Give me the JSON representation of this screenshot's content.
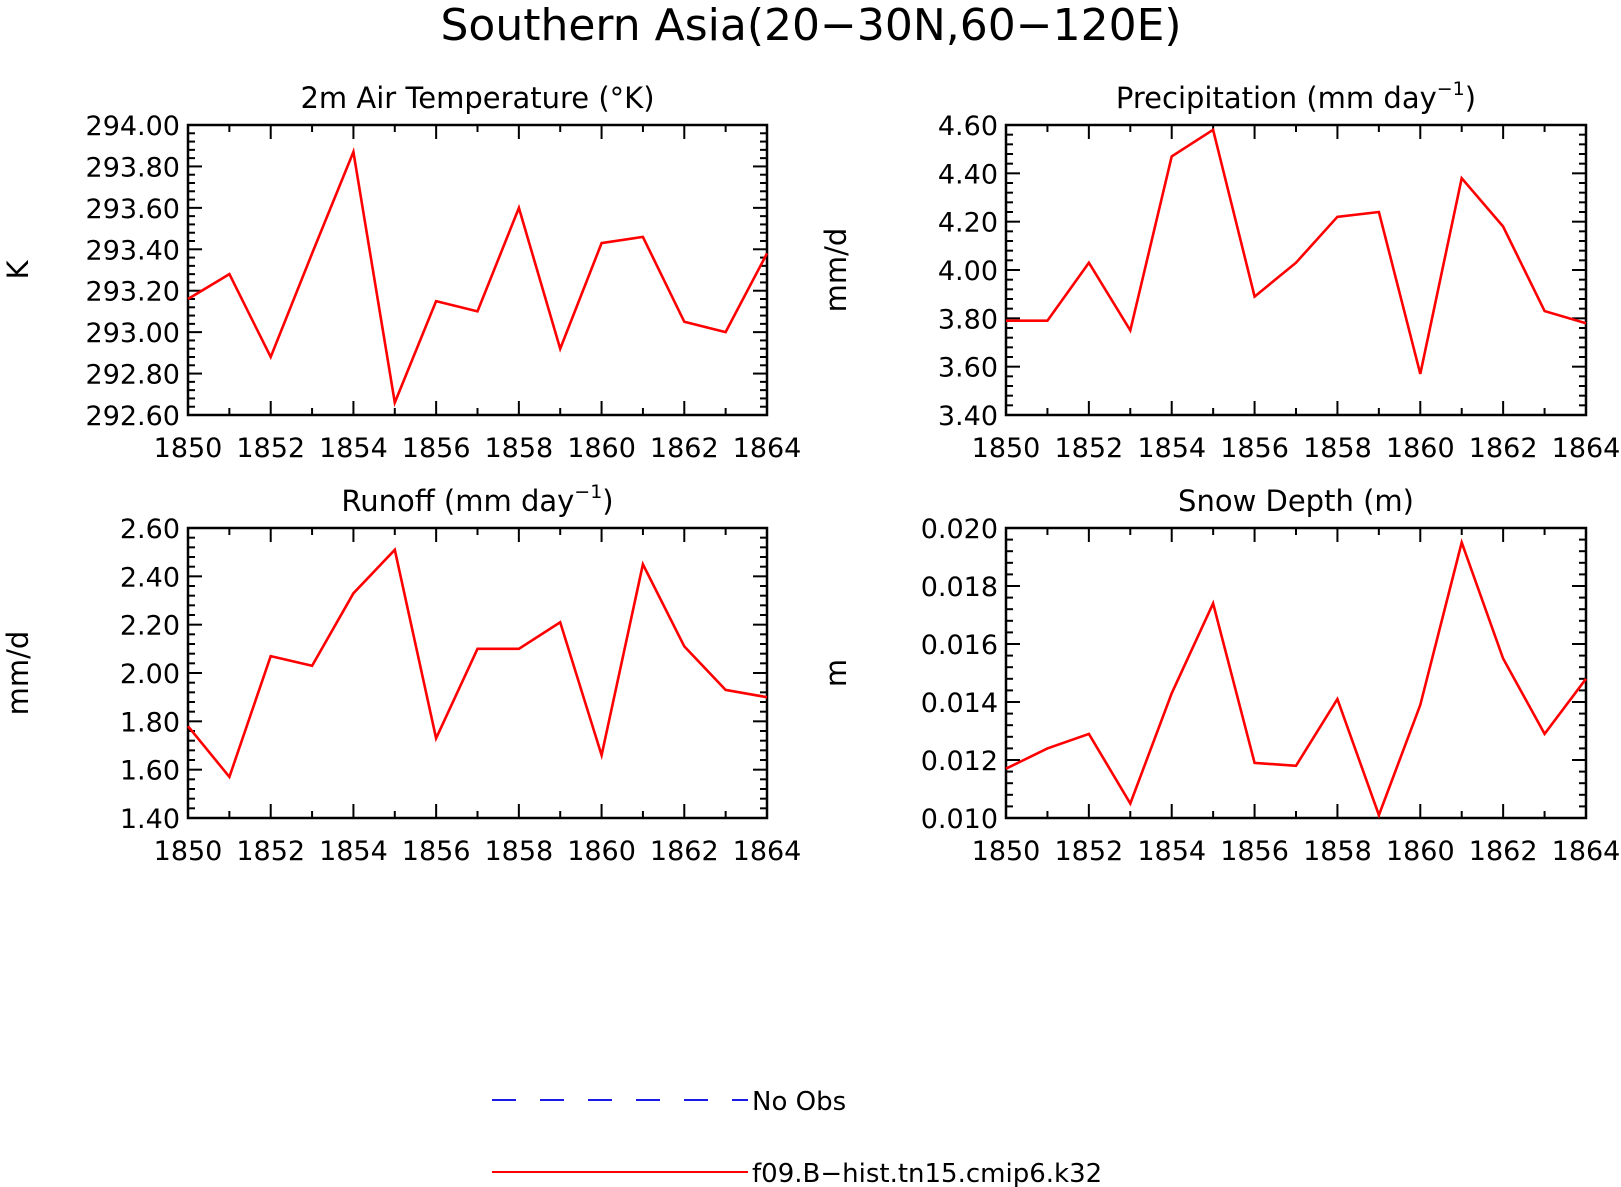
{
  "figure": {
    "title": "Southern Asia(20−30N,60−120E)"
  },
  "legend": {
    "items": [
      {
        "label": "No Obs",
        "color": "#1a1ae6",
        "style": "dashed"
      },
      {
        "label": "f09.B−hist.tn15.cmip6.k32",
        "color": "#ff0000",
        "style": "solid"
      }
    ]
  },
  "chart_data": [
    {
      "type": "line",
      "title": "2m Air Temperature (°K)",
      "ylabel": "K",
      "xlabel": "",
      "x": [
        1850,
        1851,
        1852,
        1853,
        1854,
        1855,
        1856,
        1857,
        1858,
        1859,
        1860,
        1861,
        1862,
        1863,
        1864
      ],
      "xlim": [
        1850,
        1864
      ],
      "xticks": [
        "1850",
        "1852",
        "1854",
        "1856",
        "1858",
        "1860",
        "1862",
        "1864"
      ],
      "ylim": [
        292.6,
        294.0
      ],
      "yticks": [
        "292.60",
        "292.80",
        "293.00",
        "293.20",
        "293.40",
        "293.60",
        "293.80",
        "294.00"
      ],
      "series": [
        {
          "name": "f09.B−hist.tn15.cmip6.k32",
          "color": "#ff0000",
          "values": [
            293.16,
            293.28,
            292.88,
            293.38,
            293.87,
            292.66,
            293.15,
            293.1,
            293.6,
            292.92,
            293.43,
            293.46,
            293.05,
            293.0,
            293.38
          ]
        }
      ]
    },
    {
      "type": "line",
      "title": "Precipitation (mm day",
      "title_sup": "−1",
      "title_end": ")",
      "ylabel": "mm/d",
      "xlabel": "",
      "x": [
        1850,
        1851,
        1852,
        1853,
        1854,
        1855,
        1856,
        1857,
        1858,
        1859,
        1860,
        1861,
        1862,
        1863,
        1864
      ],
      "xlim": [
        1850,
        1864
      ],
      "xticks": [
        "1850",
        "1852",
        "1854",
        "1856",
        "1858",
        "1860",
        "1862",
        "1864"
      ],
      "ylim": [
        3.4,
        4.6
      ],
      "yticks": [
        "3.40",
        "3.60",
        "3.80",
        "4.00",
        "4.20",
        "4.40",
        "4.60"
      ],
      "series": [
        {
          "name": "f09.B−hist.tn15.cmip6.k32",
          "color": "#ff0000",
          "values": [
            3.79,
            3.79,
            4.03,
            3.75,
            4.47,
            4.58,
            3.89,
            4.03,
            4.22,
            4.24,
            3.57,
            4.38,
            4.18,
            3.83,
            3.78
          ]
        }
      ]
    },
    {
      "type": "line",
      "title": "Runoff (mm day",
      "title_sup": "−1",
      "title_end": ")",
      "ylabel": "mm/d",
      "xlabel": "",
      "x": [
        1850,
        1851,
        1852,
        1853,
        1854,
        1855,
        1856,
        1857,
        1858,
        1859,
        1860,
        1861,
        1862,
        1863,
        1864
      ],
      "xlim": [
        1850,
        1864
      ],
      "xticks": [
        "1850",
        "1852",
        "1854",
        "1856",
        "1858",
        "1860",
        "1862",
        "1864"
      ],
      "ylim": [
        1.4,
        2.6
      ],
      "yticks": [
        "1.40",
        "1.60",
        "1.80",
        "2.00",
        "2.20",
        "2.40",
        "2.60"
      ],
      "series": [
        {
          "name": "f09.B−hist.tn15.cmip6.k32",
          "color": "#ff0000",
          "values": [
            1.78,
            1.57,
            2.07,
            2.03,
            2.33,
            2.51,
            1.73,
            2.1,
            2.1,
            2.21,
            1.66,
            2.45,
            2.11,
            1.93,
            1.9
          ]
        }
      ]
    },
    {
      "type": "line",
      "title": "Snow Depth (m)",
      "ylabel": "m",
      "xlabel": "",
      "x": [
        1850,
        1851,
        1852,
        1853,
        1854,
        1855,
        1856,
        1857,
        1858,
        1859,
        1860,
        1861,
        1862,
        1863,
        1864
      ],
      "xlim": [
        1850,
        1864
      ],
      "xticks": [
        "1850",
        "1852",
        "1854",
        "1856",
        "1858",
        "1860",
        "1862",
        "1864"
      ],
      "ylim": [
        0.01,
        0.02
      ],
      "yticks": [
        "0.010",
        "0.012",
        "0.014",
        "0.016",
        "0.018",
        "0.020"
      ],
      "series": [
        {
          "name": "f09.B−hist.tn15.cmip6.k32",
          "color": "#ff0000",
          "values": [
            0.0117,
            0.0124,
            0.0129,
            0.0105,
            0.0143,
            0.0174,
            0.0119,
            0.0118,
            0.0141,
            0.0101,
            0.0139,
            0.0195,
            0.0155,
            0.0129,
            0.0148
          ]
        }
      ]
    }
  ]
}
